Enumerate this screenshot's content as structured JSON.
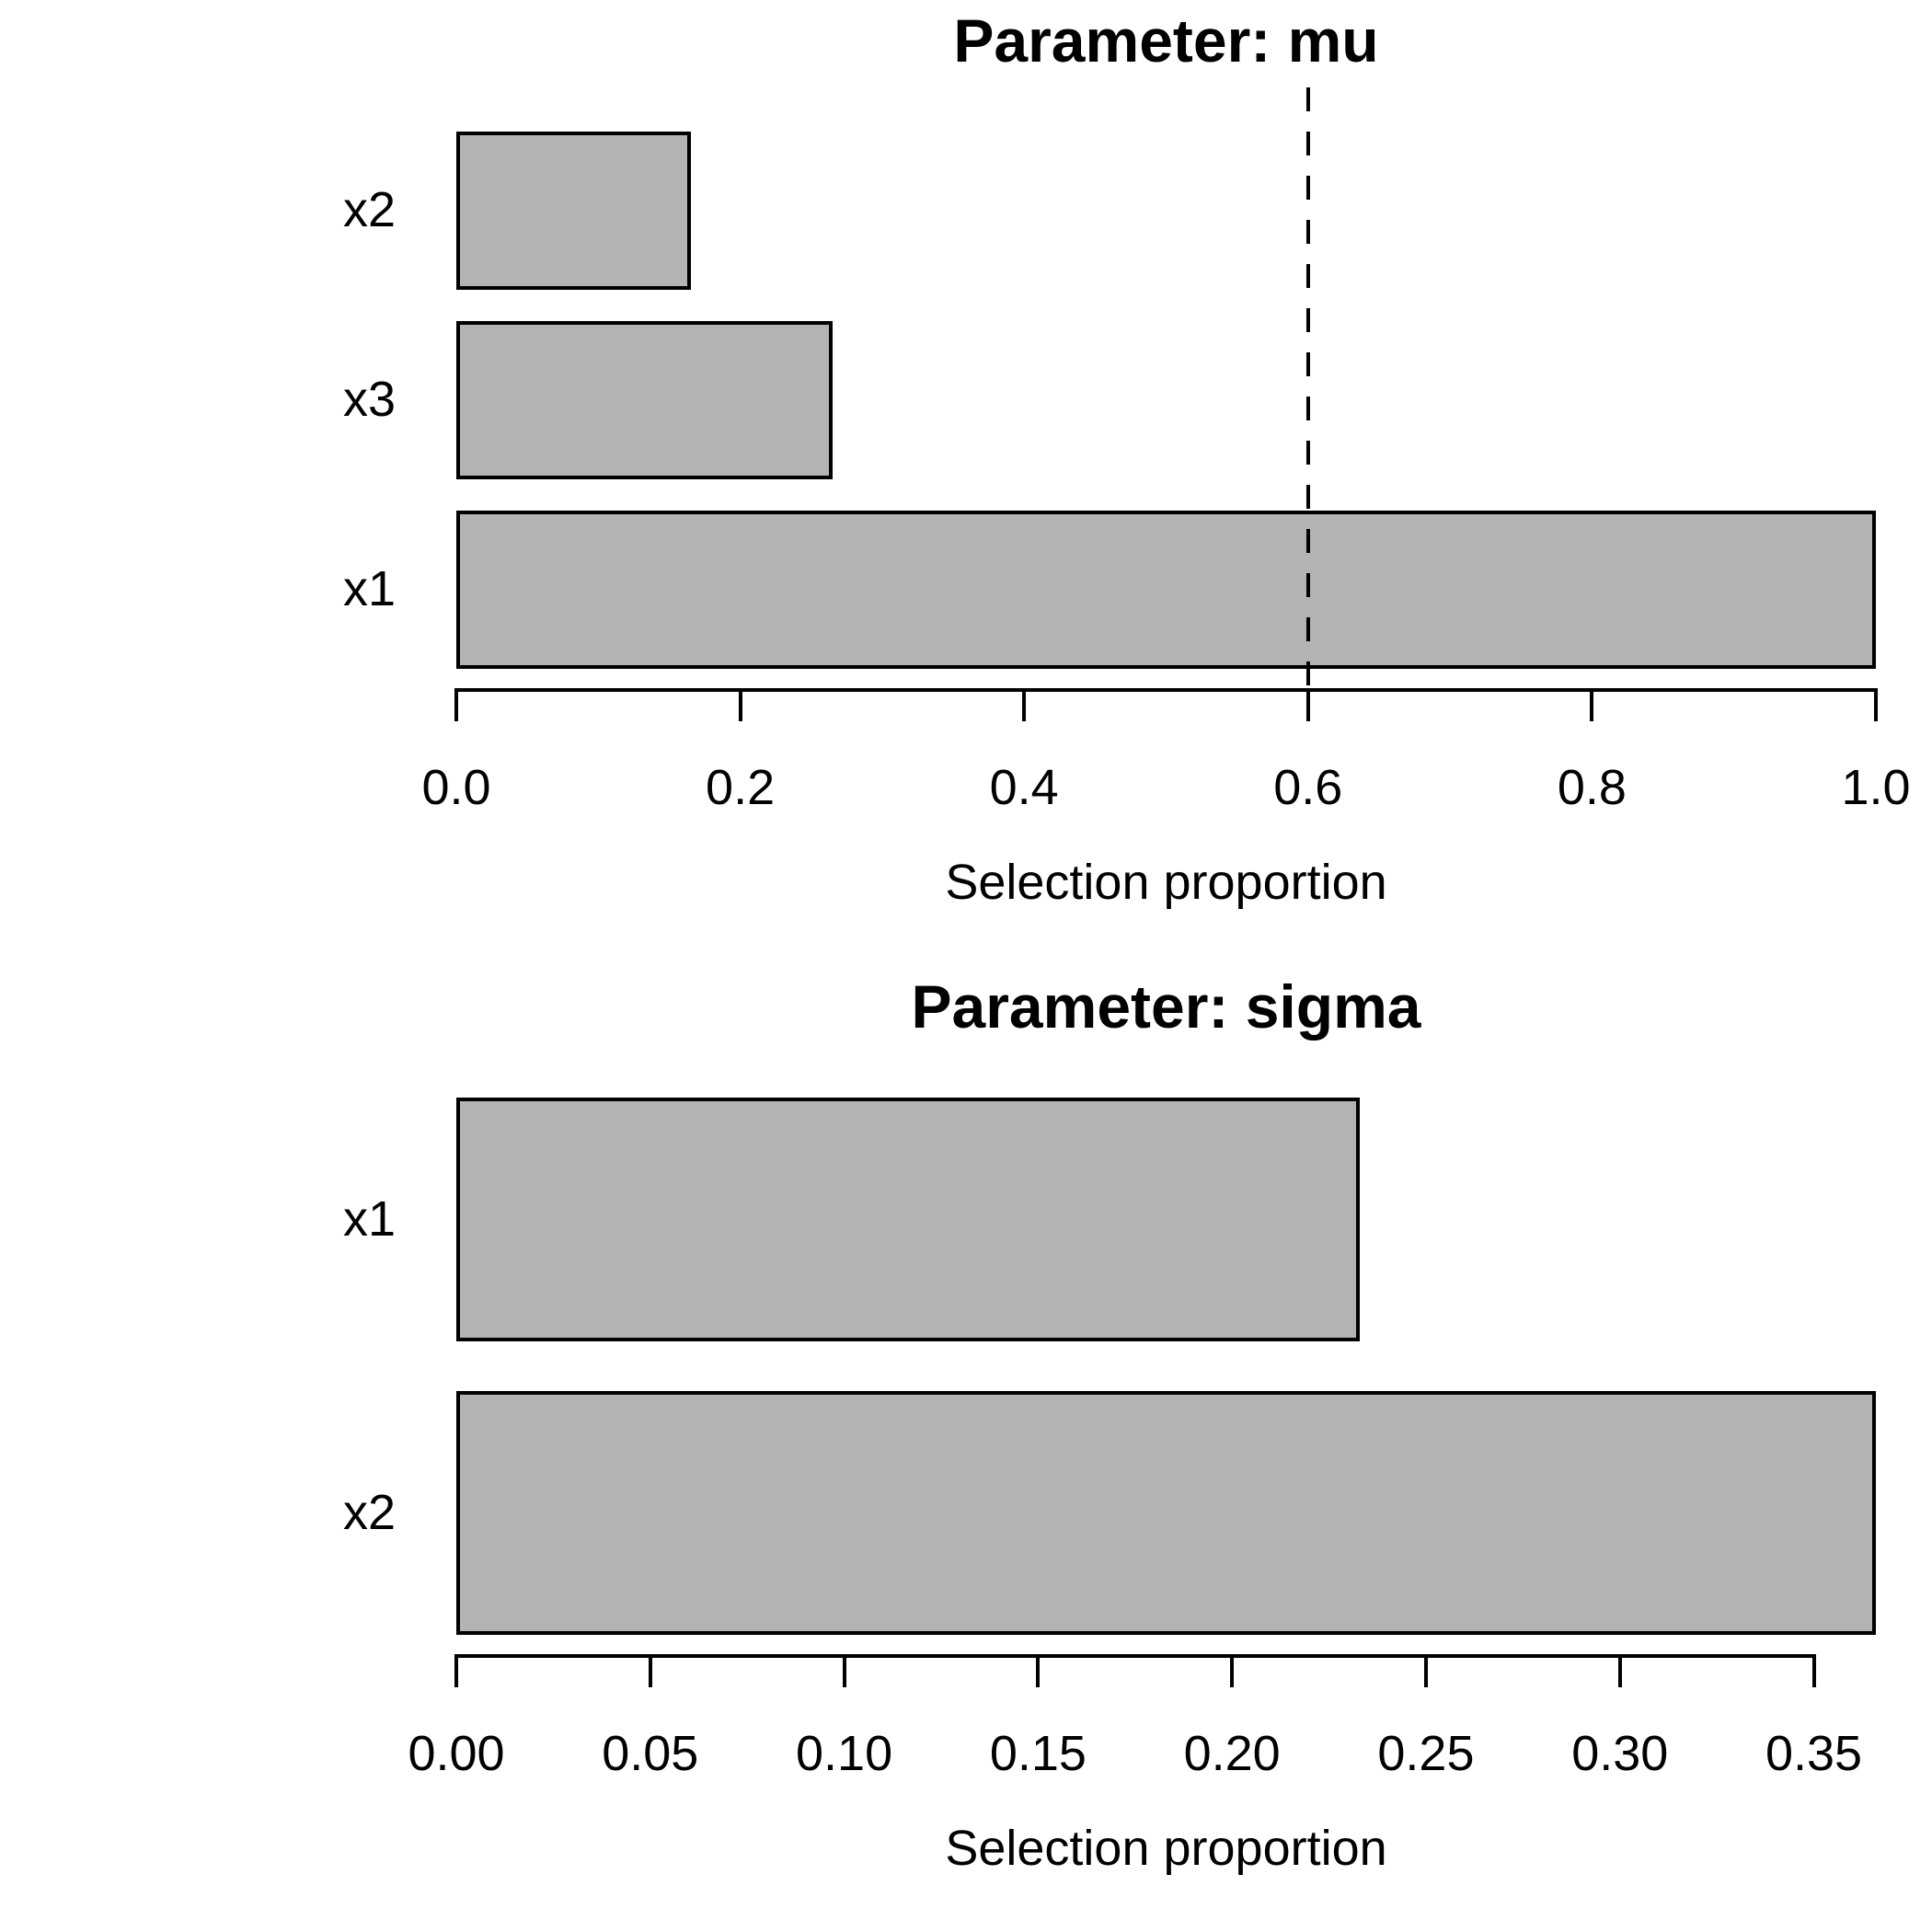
{
  "figure": {
    "background": "#ffffff",
    "text_color": "#000000"
  },
  "chart_data": [
    {
      "type": "bar",
      "orientation": "horizontal",
      "title": "Parameter: mu",
      "xlabel": "Selection proportion",
      "categories": [
        "x2",
        "x3",
        "x1"
      ],
      "values": [
        0.165,
        0.265,
        1.0
      ],
      "xticks": [
        0.0,
        0.2,
        0.4,
        0.6,
        0.8,
        1.0
      ],
      "xtick_labels": [
        "0.0",
        "0.2",
        "0.4",
        "0.6",
        "0.8",
        "1.0"
      ],
      "xlim": [
        0,
        1.0
      ],
      "threshold_line": 0.6,
      "threshold_style": "dashed",
      "bar_fill": "#b3b3b3",
      "bar_stroke": "#000000",
      "grid": false,
      "legend": false
    },
    {
      "type": "bar",
      "orientation": "horizontal",
      "title": "Parameter: sigma",
      "xlabel": "Selection proportion",
      "categories": [
        "x1",
        "x2"
      ],
      "values": [
        0.233,
        0.366
      ],
      "xticks": [
        0.0,
        0.05,
        0.1,
        0.15,
        0.2,
        0.25,
        0.3,
        0.35
      ],
      "xtick_labels": [
        "0.00",
        "0.05",
        "0.10",
        "0.15",
        "0.20",
        "0.25",
        "0.30",
        "0.35"
      ],
      "xlim": [
        0,
        0.35
      ],
      "threshold_line": null,
      "threshold_style": null,
      "bar_fill": "#b3b3b3",
      "bar_stroke": "#000000",
      "grid": false,
      "legend": false
    }
  ]
}
